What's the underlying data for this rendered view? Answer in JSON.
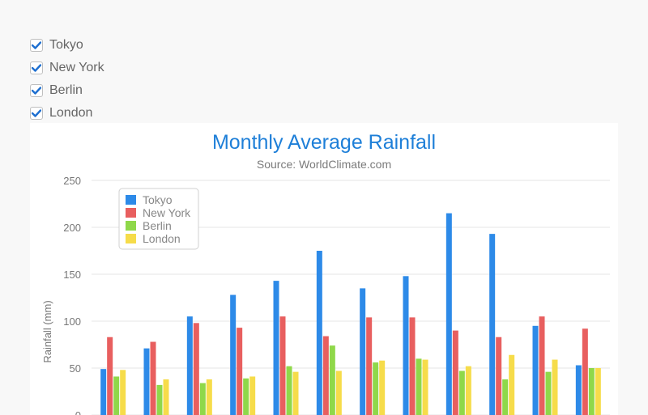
{
  "filters": [
    {
      "label": "Tokyo",
      "checked": true
    },
    {
      "label": "New York",
      "checked": true
    },
    {
      "label": "Berlin",
      "checked": true
    },
    {
      "label": "London",
      "checked": true
    }
  ],
  "colors": {
    "check": "#1e6fd0",
    "title": "#1e7fd8",
    "Tokyo": "#2d8ae8",
    "New York": "#e85f5f",
    "Berlin": "#8fd84a",
    "London": "#f6dc4a"
  },
  "chart_data": {
    "type": "bar",
    "title": "Monthly Average Rainfall",
    "subtitle": "Source: WorldClimate.com",
    "ylabel": "Rainfall (mm)",
    "ylim": [
      0,
      250
    ],
    "yticks": [
      0,
      50,
      100,
      150,
      200,
      250
    ],
    "grid": true,
    "legend_position": "top-left",
    "series": [
      {
        "name": "Tokyo",
        "values": [
          49,
          71,
          105,
          128,
          143,
          175,
          135,
          148,
          215,
          193,
          95,
          53
        ]
      },
      {
        "name": "New York",
        "values": [
          83,
          78,
          98,
          93,
          105,
          84,
          104,
          104,
          90,
          83,
          105,
          92
        ]
      },
      {
        "name": "Berlin",
        "values": [
          41,
          32,
          34,
          39,
          52,
          74,
          56,
          60,
          47,
          38,
          46,
          50
        ]
      },
      {
        "name": "London",
        "values": [
          48,
          38,
          38,
          41,
          46,
          47,
          58,
          59,
          52,
          64,
          59,
          50
        ]
      }
    ]
  }
}
